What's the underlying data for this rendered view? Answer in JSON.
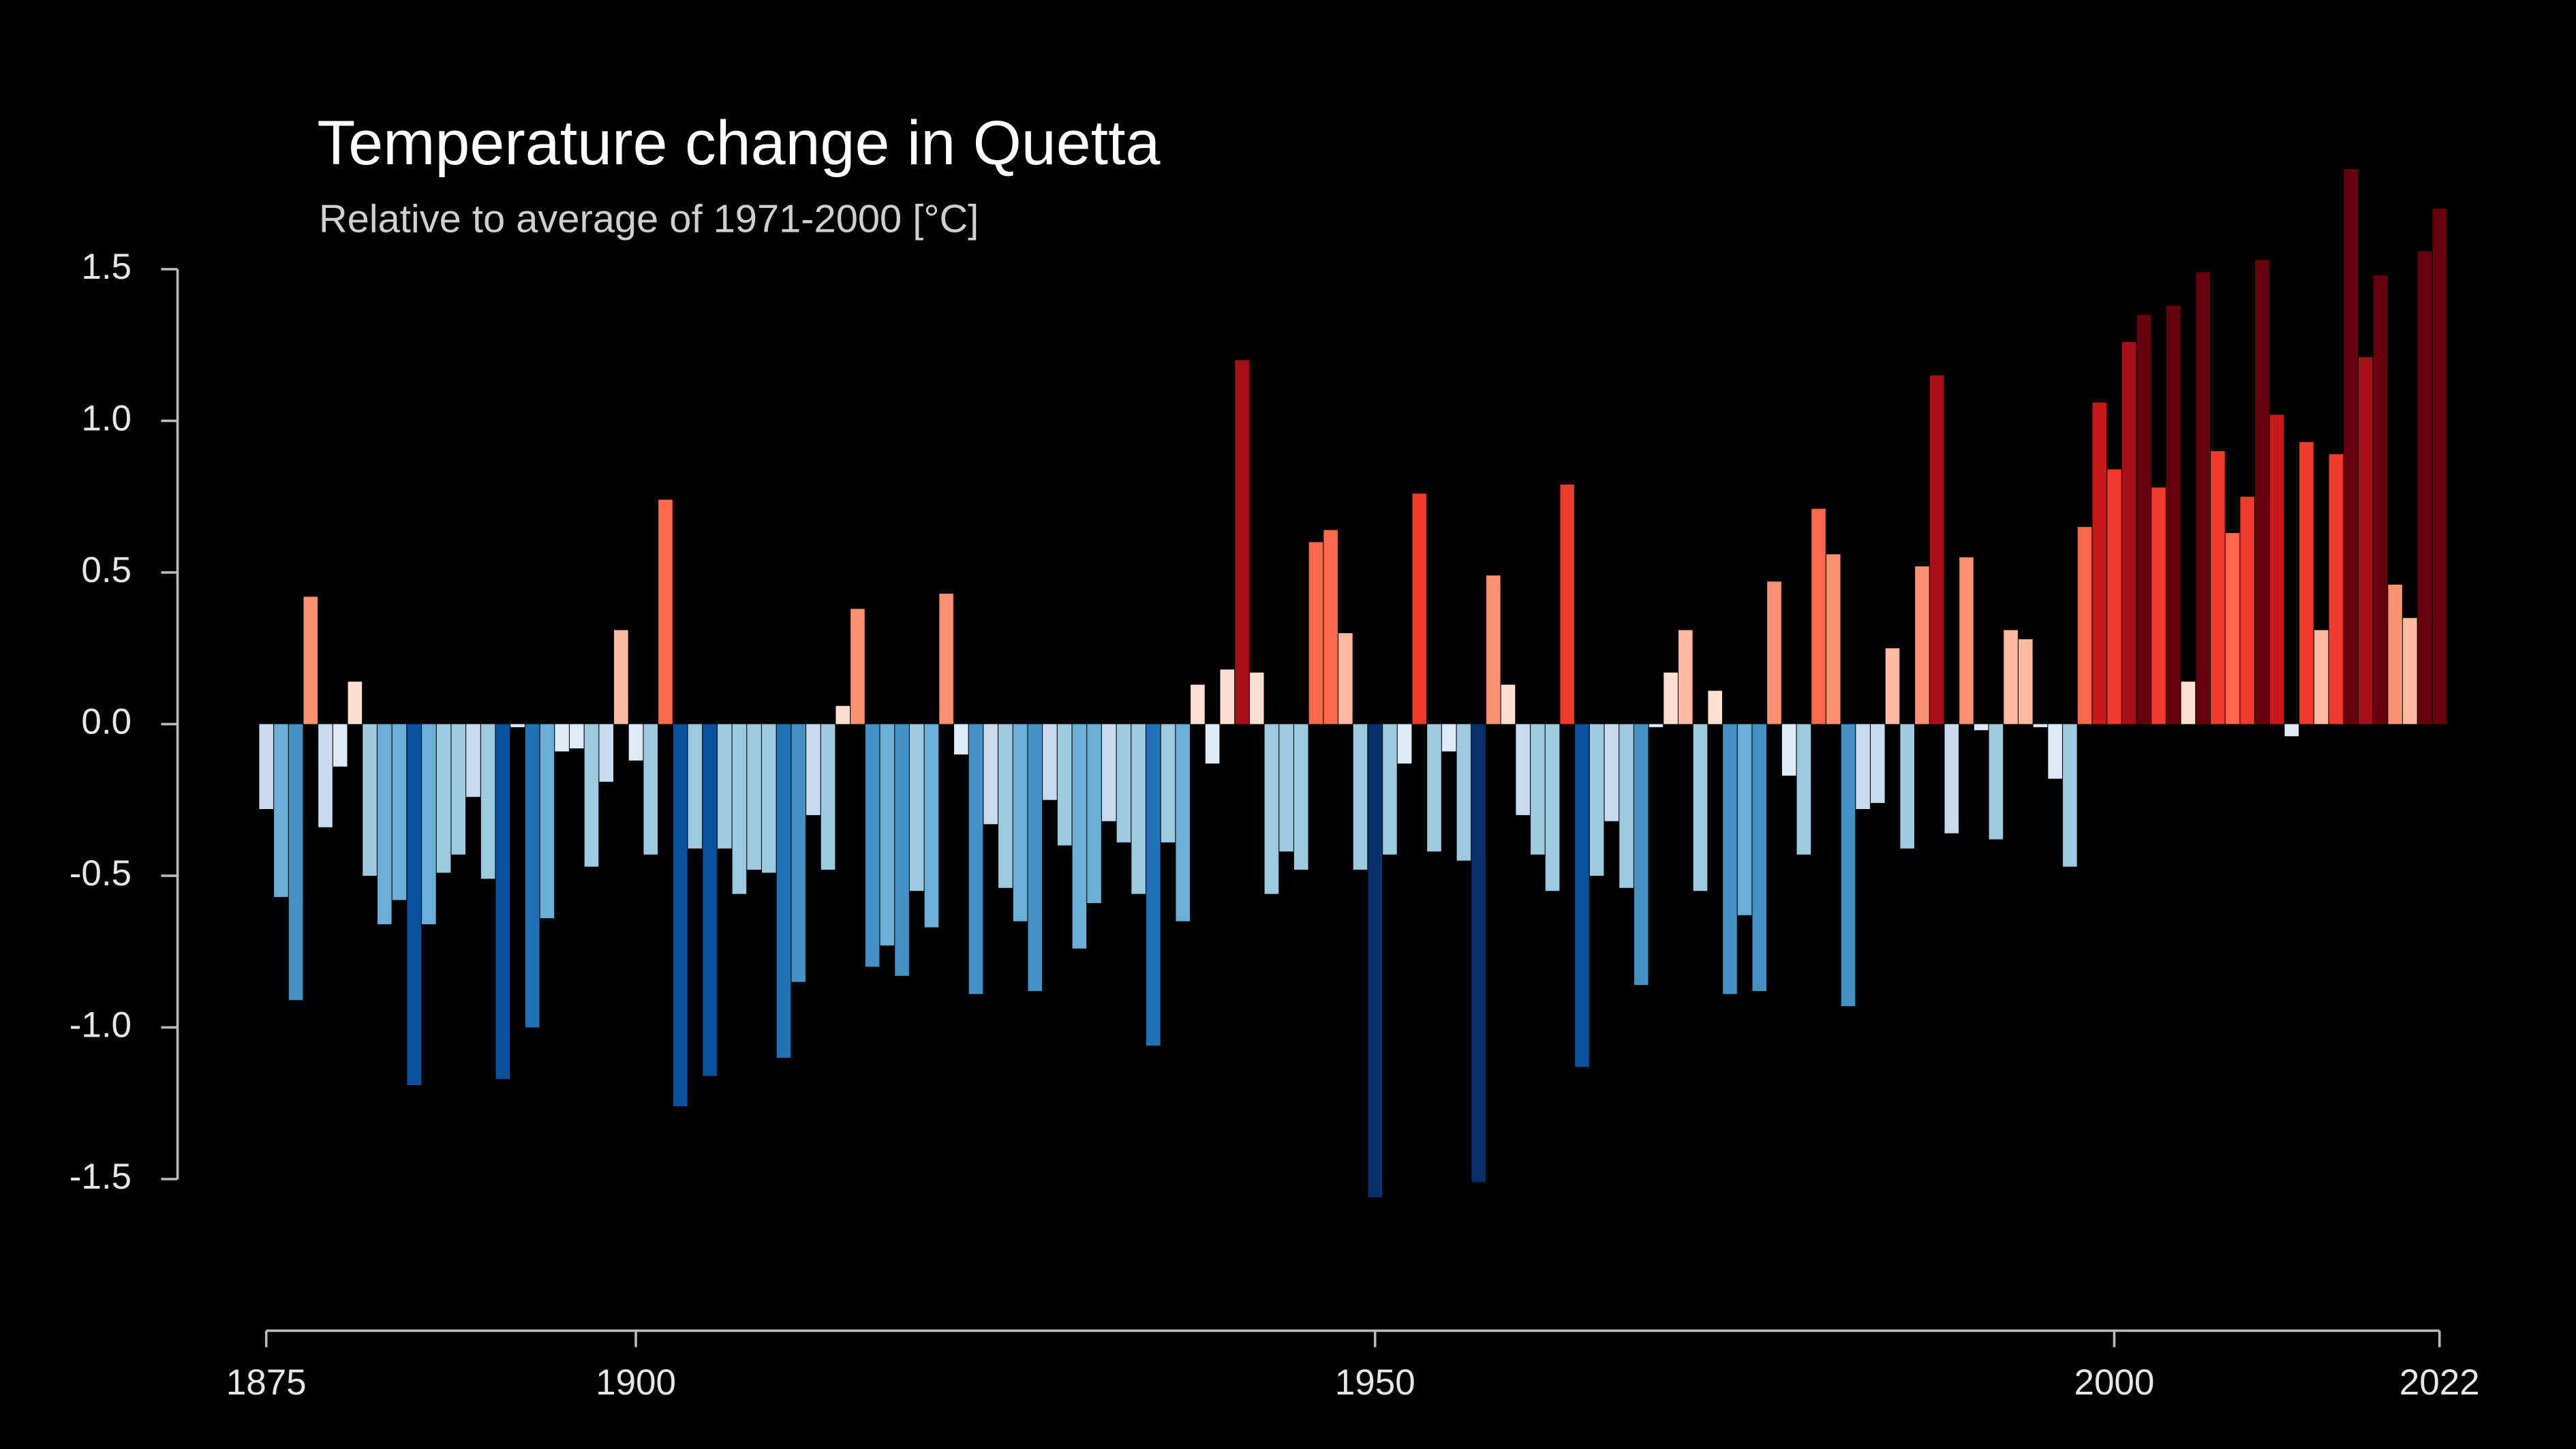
{
  "chart_data": {
    "type": "bar",
    "title": "Temperature change in Quetta",
    "subtitle": "Relative to average of 1971-2000  [°C]",
    "x": [
      1875,
      1876,
      1877,
      1878,
      1879,
      1880,
      1881,
      1882,
      1883,
      1884,
      1885,
      1886,
      1887,
      1888,
      1889,
      1890,
      1891,
      1892,
      1893,
      1894,
      1895,
      1896,
      1897,
      1898,
      1899,
      1900,
      1901,
      1902,
      1903,
      1904,
      1905,
      1906,
      1907,
      1908,
      1909,
      1910,
      1911,
      1912,
      1913,
      1914,
      1915,
      1916,
      1917,
      1918,
      1919,
      1920,
      1921,
      1922,
      1923,
      1924,
      1925,
      1926,
      1927,
      1928,
      1929,
      1930,
      1931,
      1932,
      1933,
      1934,
      1935,
      1936,
      1937,
      1938,
      1939,
      1940,
      1941,
      1942,
      1943,
      1944,
      1945,
      1946,
      1947,
      1948,
      1949,
      1950,
      1951,
      1952,
      1953,
      1954,
      1955,
      1956,
      1957,
      1958,
      1959,
      1960,
      1961,
      1962,
      1963,
      1964,
      1965,
      1966,
      1967,
      1968,
      1969,
      1970,
      1971,
      1972,
      1973,
      1974,
      1975,
      1976,
      1977,
      1978,
      1979,
      1980,
      1981,
      1982,
      1983,
      1984,
      1985,
      1986,
      1987,
      1988,
      1989,
      1990,
      1991,
      1992,
      1993,
      1994,
      1995,
      1996,
      1997,
      1998,
      1999,
      2000,
      2001,
      2002,
      2003,
      2004,
      2005,
      2006,
      2007,
      2008,
      2009,
      2010,
      2011,
      2012,
      2013,
      2014,
      2015,
      2016,
      2017,
      2018,
      2019,
      2020,
      2021,
      2022
    ],
    "values": [
      -0.28,
      -0.57,
      -0.91,
      0.42,
      -0.34,
      -0.14,
      0.14,
      -0.5,
      -0.66,
      -0.58,
      -1.19,
      -0.66,
      -0.49,
      -0.43,
      -0.24,
      -0.51,
      -1.17,
      -0.01,
      -1.0,
      -0.64,
      -0.09,
      -0.08,
      -0.47,
      -0.19,
      0.31,
      -0.12,
      -0.43,
      0.74,
      -1.26,
      -0.41,
      -1.16,
      -0.41,
      -0.56,
      -0.48,
      -0.49,
      -1.1,
      -0.85,
      -0.3,
      -0.48,
      0.06,
      0.38,
      -0.8,
      -0.73,
      -0.83,
      -0.55,
      -0.67,
      0.43,
      -0.1,
      -0.89,
      -0.33,
      -0.54,
      -0.65,
      -0.88,
      -0.25,
      -0.4,
      -0.74,
      -0.59,
      -0.32,
      -0.39,
      -0.56,
      -1.06,
      -0.39,
      -0.65,
      0.13,
      -0.13,
      0.18,
      1.2,
      0.17,
      -0.56,
      -0.42,
      -0.48,
      0.6,
      0.64,
      0.3,
      -0.48,
      -1.56,
      -0.43,
      -0.13,
      0.76,
      -0.42,
      -0.09,
      -0.45,
      -1.51,
      0.49,
      0.13,
      -0.3,
      -0.43,
      -0.55,
      0.79,
      -1.13,
      -0.5,
      -0.32,
      -0.54,
      -0.86,
      -0.01,
      0.17,
      0.31,
      -0.55,
      0.11,
      -0.89,
      -0.63,
      -0.88,
      0.47,
      -0.17,
      -0.43,
      0.71,
      0.56,
      -0.93,
      -0.28,
      -0.26,
      0.25,
      -0.41,
      0.52,
      1.15,
      -0.36,
      0.55,
      -0.02,
      -0.38,
      0.31,
      0.28,
      -0.01,
      -0.18,
      -0.47,
      0.65,
      1.06,
      0.84,
      1.26,
      1.35,
      0.78,
      1.38,
      0.14,
      1.49,
      0.9,
      0.63,
      0.75,
      1.53,
      1.02,
      -0.04,
      0.93,
      0.31,
      0.89,
      1.83,
      1.21,
      1.48,
      0.46,
      0.35,
      1.56,
      1.7
    ],
    "colormap": [
      "#08306b",
      "#08519c",
      "#2171b5",
      "#4292c6",
      "#6baed6",
      "#9ecae1",
      "#c6dbef",
      "#deebf7",
      "#fee0d2",
      "#fcbba1",
      "#fc9272",
      "#fb6a4a",
      "#ef3b2c",
      "#cb181d",
      "#a50f15",
      "#67000d"
    ],
    "xlim": [
      1875,
      2022
    ],
    "xticks": [
      1875,
      1900,
      1950,
      2000,
      2022
    ],
    "ylim": [
      -2.0,
      1.9
    ],
    "yticks": [
      1.5,
      {
        "value": 1.0,
        "label": "1.0"
      },
      0.5,
      {
        "value": 0.0,
        "label": "0.0"
      },
      -0.5,
      {
        "value": -1.0,
        "label": "-1.0"
      },
      -1.5
    ]
  }
}
